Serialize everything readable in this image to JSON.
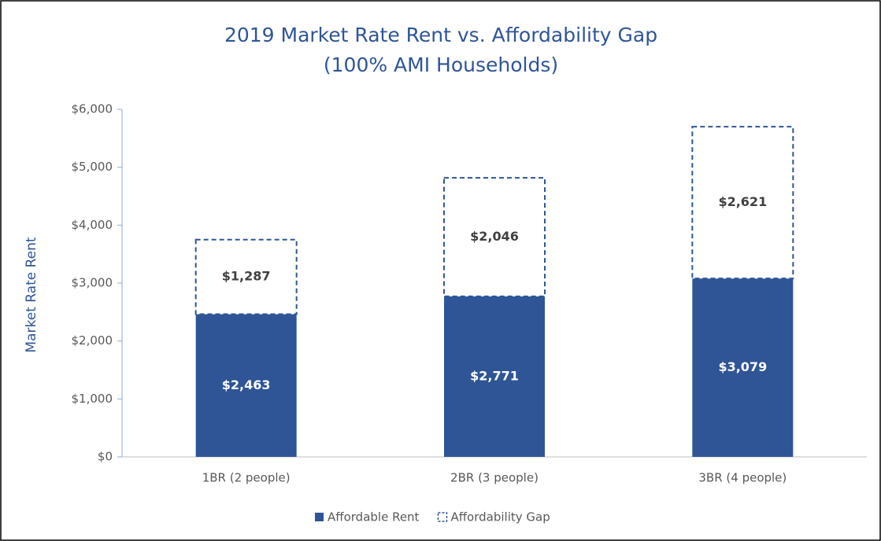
{
  "chart_data": {
    "type": "stacked_bar",
    "title": [
      "2019 Market Rate Rent vs. Affordability Gap",
      "(100% AMI Households)"
    ],
    "y_label": "Market Rate Rent",
    "categories": [
      "1BR (2 people)",
      "2BR (3 people)",
      "3BR (4 people)"
    ],
    "series": [
      {
        "name": "Affordable Rent",
        "color": "#2f5597",
        "style": "solid",
        "values": [
          2463,
          2771,
          3079
        ],
        "value_labels": [
          "$2,463",
          "$2,771",
          "$3,079"
        ]
      },
      {
        "name": "Affordability Gap",
        "color": "#2f5597",
        "style": "dashed",
        "values": [
          1287,
          2046,
          2621
        ],
        "value_labels": [
          "$1,287",
          "$2,046",
          "$2,621"
        ]
      }
    ],
    "ylim": [
      0,
      6000
    ],
    "yticks": [
      {
        "value": 0,
        "label": "$0"
      },
      {
        "value": 1000,
        "label": "$1,000"
      },
      {
        "value": 2000,
        "label": "$2,000"
      },
      {
        "value": 3000,
        "label": "$3,000"
      },
      {
        "value": 4000,
        "label": "$4,000"
      },
      {
        "value": 5000,
        "label": "$5,000"
      },
      {
        "value": 6000,
        "label": "$6,000"
      }
    ],
    "legend": "bottom"
  }
}
